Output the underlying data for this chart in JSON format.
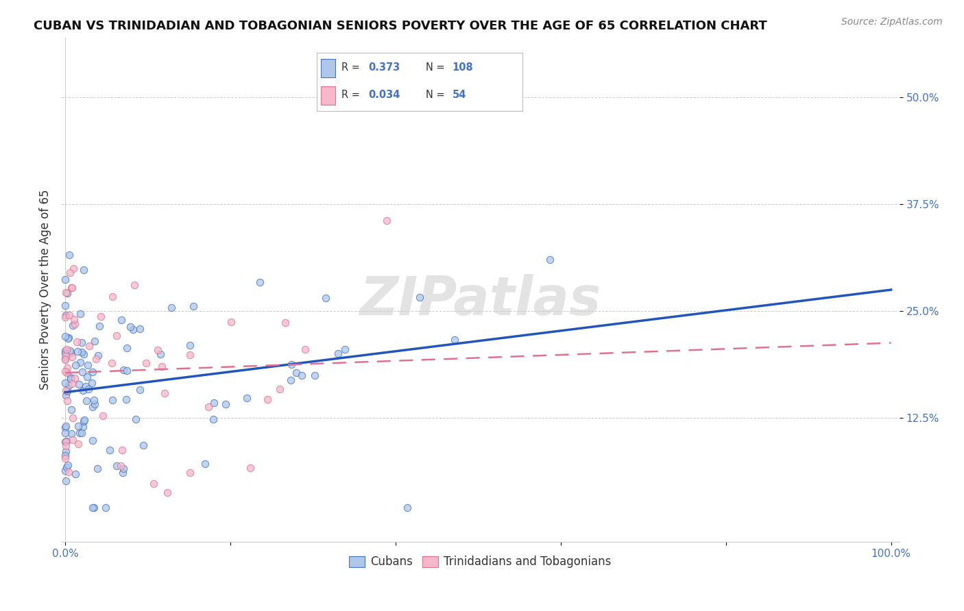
{
  "title": "CUBAN VS TRINIDADIAN AND TOBAGONIAN SENIORS POVERTY OVER THE AGE OF 65 CORRELATION CHART",
  "source": "Source: ZipAtlas.com",
  "ylabel": "Seniors Poverty Over the Age of 65",
  "xlim": [
    -0.005,
    1.01
  ],
  "ylim": [
    -0.02,
    0.57
  ],
  "xticks": [
    0.0,
    0.2,
    0.4,
    0.6,
    0.8,
    1.0
  ],
  "xtick_labels": [
    "0.0%",
    "",
    "",
    "",
    "",
    "100.0%"
  ],
  "ytick_values": [
    0.125,
    0.25,
    0.375,
    0.5
  ],
  "ytick_labels": [
    "12.5%",
    "25.0%",
    "37.5%",
    "50.0%"
  ],
  "R_cubans": 0.373,
  "N_cubans": 108,
  "R_trini": 0.034,
  "N_trini": 54,
  "color_cubans_fill": "#aec6e8",
  "color_cubans_edge": "#4472c4",
  "color_trini_fill": "#f5b8ca",
  "color_trini_edge": "#e07090",
  "color_cubans_line": "#2255bb",
  "color_trini_line": "#e07090",
  "watermark": "ZIPatlas",
  "legend_label_cubans": "Cubans",
  "legend_label_trini": "Trinidadians and Tobagonians",
  "title_fontsize": 13,
  "source_fontsize": 10,
  "axis_label_fontsize": 12,
  "tick_fontsize": 11,
  "legend_fontsize": 12
}
